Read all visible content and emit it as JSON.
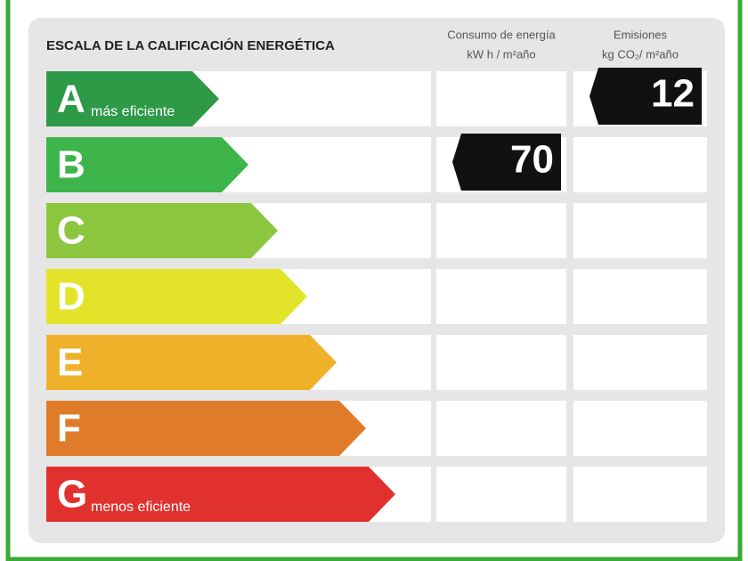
{
  "title": "ESCALA DE LA CALIFICACIÓN ENERGÉTICA",
  "columns": [
    {
      "title": "Consumo de energía",
      "unit": "kW h / m²año",
      "rating": "B",
      "value": 70
    },
    {
      "title": "Emisiones",
      "unit": "kg CO₂/ m²año",
      "rating": "A",
      "value": 12
    }
  ],
  "ratings": [
    {
      "letter": "A",
      "label": "más eficiente",
      "color": "#2e9a48"
    },
    {
      "letter": "B",
      "label": null,
      "color": "#3db54a"
    },
    {
      "letter": "C",
      "label": null,
      "color": "#8cc63f"
    },
    {
      "letter": "D",
      "label": null,
      "color": "#e3e42a"
    },
    {
      "letter": "E",
      "label": null,
      "color": "#f0b12a"
    },
    {
      "letter": "F",
      "label": null,
      "color": "#e07b2a"
    },
    {
      "letter": "G",
      "label": "menos eficiente",
      "color": "#e0312f"
    }
  ]
}
